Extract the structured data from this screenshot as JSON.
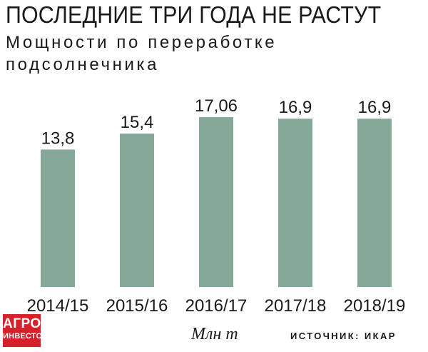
{
  "header": {
    "title": "ПОСЛЕДНИЕ ТРИ ГОДА НЕ РАСТУТ",
    "subtitle": "Мощности по переработке подсолнечника"
  },
  "footer": {
    "logo_line1": "АГРО",
    "logo_line2": "ИНВЕСТОР",
    "unit": "Млн т",
    "source": "ИСТОЧНИК: ИКАР"
  },
  "colors": {
    "bar": "#86a898",
    "text": "#1a1a1a",
    "logo": "#d6202a"
  },
  "chart_data": {
    "type": "bar",
    "title": "ПОСЛЕДНИЕ ТРИ ГОДА НЕ РАСТУТ",
    "subtitle": "Мощности по переработке подсолнечника",
    "categories": [
      "2014/15",
      "2015/16",
      "2016/17",
      "2017/18",
      "2018/19"
    ],
    "values": [
      13.8,
      15.4,
      17.06,
      16.9,
      16.9
    ],
    "value_labels": [
      "13,8",
      "15,4",
      "17,06",
      "16,9",
      "16,9"
    ],
    "unit": "Млн т",
    "ylim": [
      0,
      17.06
    ],
    "grid": false,
    "legend": "none",
    "source": "ИСТОЧНИК: ИКАР"
  }
}
